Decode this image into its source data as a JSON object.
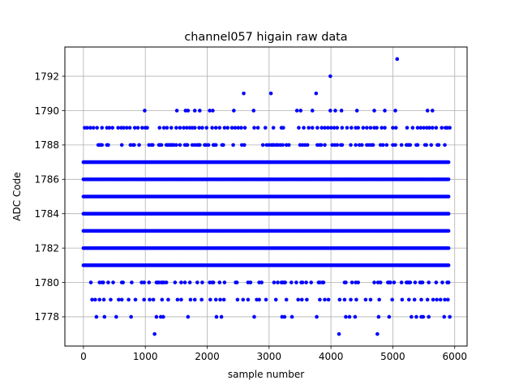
{
  "chart_data": {
    "type": "scatter",
    "title": "channel057 higain raw data",
    "xlabel": "sample number",
    "ylabel": "ADC Code",
    "xlim": [
      -300,
      6200
    ],
    "ylim": [
      1776.3,
      1793.7
    ],
    "x_ticks": [
      0,
      1000,
      2000,
      3000,
      4000,
      5000,
      6000
    ],
    "y_ticks": [
      1778,
      1780,
      1782,
      1784,
      1786,
      1788,
      1790,
      1792
    ],
    "grid": true,
    "marker_color": "#0000ff",
    "sample_range": [
      0,
      5919
    ],
    "dense_levels": [
      1781,
      1782,
      1783,
      1784,
      1785,
      1786,
      1787
    ],
    "medium_levels": [
      {
        "y": 1780,
        "density": 0.3
      },
      {
        "y": 1788,
        "density": 0.32
      }
    ],
    "sparse_points": [
      {
        "y": 1789,
        "x": [
          20,
          60,
          110,
          160,
          220,
          300,
          380,
          420,
          470,
          560,
          610,
          650,
          700,
          750,
          830,
          880,
          950,
          1000,
          1030,
          1230,
          1300,
          1350,
          1420,
          1500,
          1560,
          1620,
          1670,
          1720,
          1760,
          1800,
          1870,
          1920,
          1990,
          2080,
          2140,
          2200,
          2280,
          2330,
          2400,
          2450,
          2500,
          2550,
          2610,
          2760,
          2820,
          2940,
          3070,
          3200,
          3230,
          3480,
          3560,
          3640,
          3700,
          3780,
          3850,
          3900,
          3950,
          4000,
          4050,
          4100,
          4180,
          4260,
          4330,
          4400,
          4440,
          4520,
          4580,
          4640,
          4700,
          4740,
          4820,
          4870,
          5000,
          5050,
          5230,
          5320,
          5400,
          5450,
          5500,
          5550,
          5590,
          5640,
          5700,
          5790,
          5850,
          5880,
          5920
        ]
      },
      {
        "y": 1790,
        "x": [
          990,
          1510,
          1650,
          1690,
          1800,
          1880,
          2040,
          2090,
          2430,
          2750,
          3450,
          3510,
          3700,
          3990,
          4070,
          4170,
          4420,
          4700,
          4870,
          5040,
          5560,
          5640
        ]
      },
      {
        "y": 1791,
        "x": [
          2590,
          3030,
          3760
        ]
      },
      {
        "y": 1792,
        "x": [
          3990
        ]
      },
      {
        "y": 1793,
        "x": [
          5070
        ]
      },
      {
        "y": 1779,
        "x": [
          140,
          190,
          260,
          330,
          440,
          570,
          620,
          730,
          840,
          980,
          1070,
          1130,
          1270,
          1370,
          1520,
          1580,
          1730,
          1800,
          1910,
          2050,
          2140,
          2210,
          2270,
          2490,
          2580,
          2660,
          2800,
          2840,
          2950,
          3110,
          3280,
          3470,
          3530,
          3610,
          3820,
          3900,
          3960,
          4140,
          4220,
          4320,
          4410,
          4560,
          4640,
          4780,
          4990,
          5150,
          5260,
          5350,
          5460,
          5560,
          5650,
          5710,
          5770,
          5840,
          5890
        ]
      },
      {
        "y": 1778,
        "x": [
          210,
          340,
          530,
          770,
          1180,
          1250,
          1290,
          1690,
          2150,
          2230,
          2760,
          3210,
          3250,
          3370,
          3770,
          4240,
          4300,
          4390,
          4770,
          4940,
          5300,
          5380,
          5460,
          5490,
          5580,
          5830,
          5920
        ]
      },
      {
        "y": 1777,
        "x": [
          1150,
          4130,
          4750
        ]
      }
    ]
  }
}
